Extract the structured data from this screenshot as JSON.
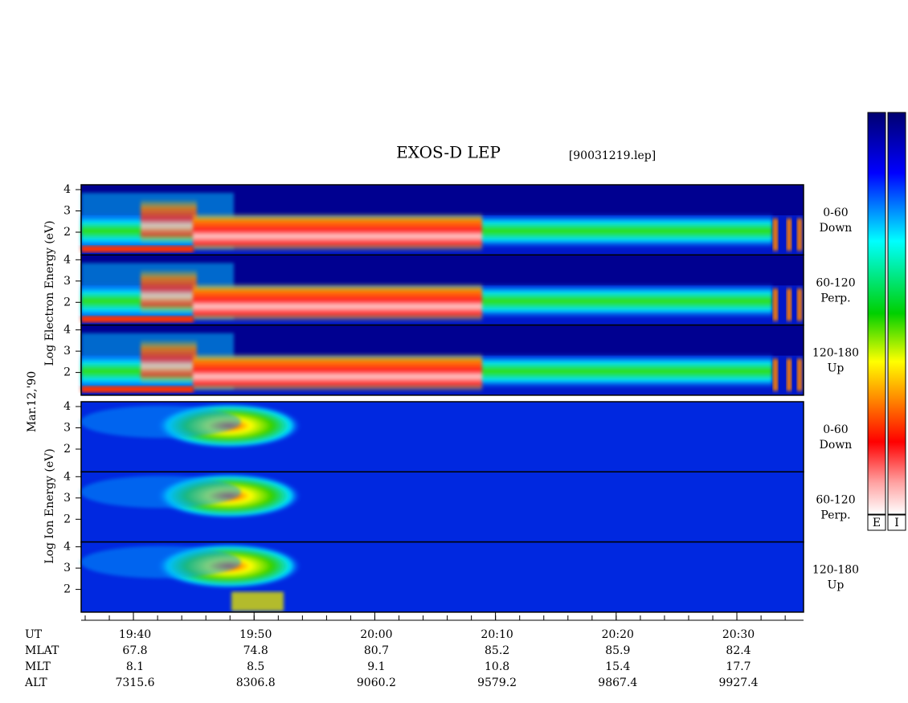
{
  "header": {
    "title": "EXOS-D LEP",
    "file": "[90031219.lep]"
  },
  "electron": {
    "axis_label": "Log Electron Energy (eV)",
    "panels": [
      {
        "ticks": [
          "4",
          "3",
          "2"
        ],
        "label": "0-60",
        "sublabel": "Down"
      },
      {
        "ticks": [
          "4",
          "3",
          "2"
        ],
        "label": "60-120",
        "sublabel": "Perp."
      },
      {
        "ticks": [
          "4",
          "3",
          "2"
        ],
        "label": "120-180",
        "sublabel": "Up"
      }
    ]
  },
  "date": "Mar.12,'90",
  "ion": {
    "axis_label": "Log Ion Energy (eV)",
    "panels": [
      {
        "ticks": [
          "4",
          "3",
          "2"
        ],
        "label": "0-60",
        "sublabel": "Down"
      },
      {
        "ticks": [
          "4",
          "3",
          "2"
        ],
        "label": "60-120",
        "sublabel": "Perp."
      },
      {
        "ticks": [
          "4",
          "3",
          "2"
        ],
        "label": "120-180",
        "sublabel": "Up"
      }
    ]
  },
  "colorbars": [
    "E",
    "I"
  ],
  "time_axis": {
    "rows": [
      {
        "label": "UT",
        "values": [
          "19:40",
          "19:50",
          "20:00",
          "20:10",
          "20:20",
          "20:30"
        ]
      },
      {
        "label": "MLAT",
        "values": [
          "67.8",
          "74.8",
          "80.7",
          "85.2",
          "85.9",
          "82.4"
        ]
      },
      {
        "label": "MLT",
        "values": [
          "8.1",
          "8.5",
          "9.1",
          "10.8",
          "15.4",
          "17.7"
        ]
      },
      {
        "label": "ALT",
        "values": [
          "7315.6",
          "8306.8",
          "9060.2",
          "9579.2",
          "9867.4",
          "9927.4"
        ]
      }
    ]
  }
}
